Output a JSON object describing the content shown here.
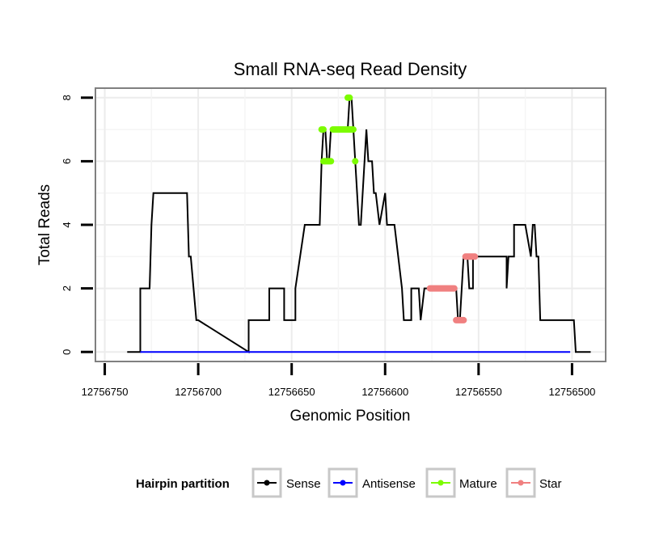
{
  "chart_data": {
    "type": "line",
    "title": "Small RNA-seq Read Density",
    "xlabel": "Genomic Position",
    "ylabel": "Total Reads",
    "xlim": [
      12756755,
      12756482
    ],
    "ylim": [
      -0.3,
      8.3
    ],
    "x_ticks": [
      12756750,
      12756700,
      12756650,
      12756600,
      12756550,
      12756500
    ],
    "x_tick_labels": [
      "12756750",
      "12756700",
      "12756650",
      "12756600",
      "12756550",
      "12756500"
    ],
    "y_ticks": [
      0,
      2,
      4,
      6,
      8
    ],
    "y_tick_labels": [
      "0",
      "2",
      "4",
      "6",
      "8"
    ],
    "grid": true,
    "legend": {
      "title": "Hairpin partition",
      "placement": "bottom",
      "entries": [
        "Sense",
        "Antisense",
        "Mature",
        "Star"
      ]
    },
    "colors": {
      "Sense": "#000000",
      "Antisense": "#0000ff",
      "Mature": "#7cfc00",
      "Star": "#f08080",
      "grid": "#ececec",
      "panel_border": "#808080"
    },
    "series": [
      {
        "name": "Sense",
        "x": [
          12756738,
          12756731,
          12756731,
          12756726,
          12756725,
          12756724,
          12756706,
          12756705,
          12756704,
          12756701,
          12756700,
          12756673,
          12756673,
          12756662,
          12756662,
          12756654,
          12756654,
          12756648,
          12756648,
          12756643,
          12756642,
          12756641,
          12756635,
          12756634,
          12756633,
          12756632,
          12756631,
          12756630,
          12756629,
          12756628,
          12756627,
          12756621,
          12756620,
          12756619,
          12756618,
          12756617,
          12756616,
          12756615,
          12756614,
          12756613,
          12756610,
          12756609,
          12756607,
          12756606,
          12756605,
          12756603,
          12756603,
          12756600,
          12756599,
          12756597,
          12756596,
          12756595,
          12756591,
          12756590,
          12756586,
          12756586,
          12756582,
          12756581,
          12756579,
          12756577,
          12756575,
          12756574,
          12756574,
          12756563,
          12756562,
          12756561,
          12756560,
          12756558,
          12756558,
          12756556,
          12756555,
          12756553,
          12756553,
          12756549,
          12756548,
          12756546,
          12756546,
          12756535,
          12756535,
          12756534,
          12756533,
          12756531,
          12756531,
          12756526,
          12756525,
          12756522,
          12756521,
          12756520,
          12756519,
          12756518,
          12756517,
          12756514,
          12756513,
          12756508,
          12756507,
          12756499,
          12756498,
          12756490
        ],
        "values": [
          0,
          0,
          2,
          2,
          4,
          5,
          5,
          3,
          3,
          1,
          1,
          0,
          1,
          1,
          2,
          2,
          1,
          1,
          2,
          4,
          4,
          4,
          4,
          6,
          7,
          7,
          6,
          6,
          7,
          7,
          7,
          7,
          7,
          8,
          8,
          7,
          6,
          5,
          4,
          4,
          7,
          6,
          6,
          5,
          5,
          4,
          4,
          5,
          4,
          4,
          4,
          4,
          2,
          1,
          1,
          2,
          2,
          1,
          2,
          2,
          2,
          2,
          2,
          2,
          2,
          1,
          1,
          3,
          3,
          3,
          2,
          2,
          3,
          3,
          3,
          3,
          3,
          3,
          2,
          3,
          3,
          3,
          4,
          4,
          4,
          3,
          4,
          4,
          3,
          3,
          1,
          1,
          1,
          1,
          1,
          1,
          0,
          0
        ]
      },
      {
        "name": "Antisense",
        "x": [
          12756731,
          12756501
        ],
        "values": [
          0,
          0
        ]
      },
      {
        "name": "Mature",
        "segments": [
          {
            "x": [
              12756634,
              12756633
            ],
            "values": [
              7,
              7
            ]
          },
          {
            "x": [
              12756633,
              12756629
            ],
            "values": [
              6,
              6
            ]
          },
          {
            "x": [
              12756628,
              12756617
            ],
            "values": [
              7,
              7
            ]
          },
          {
            "x": [
              12756620,
              12756619
            ],
            "values": [
              8,
              8
            ]
          },
          {
            "x": [
              12756616,
              12756616
            ],
            "values": [
              6,
              6
            ]
          }
        ]
      },
      {
        "name": "Star",
        "segments": [
          {
            "x": [
              12756576,
              12756563
            ],
            "values": [
              2,
              2
            ]
          },
          {
            "x": [
              12756562,
              12756558
            ],
            "values": [
              1,
              1
            ]
          },
          {
            "x": [
              12756557,
              12756552
            ],
            "values": [
              3,
              3
            ]
          }
        ]
      }
    ]
  }
}
